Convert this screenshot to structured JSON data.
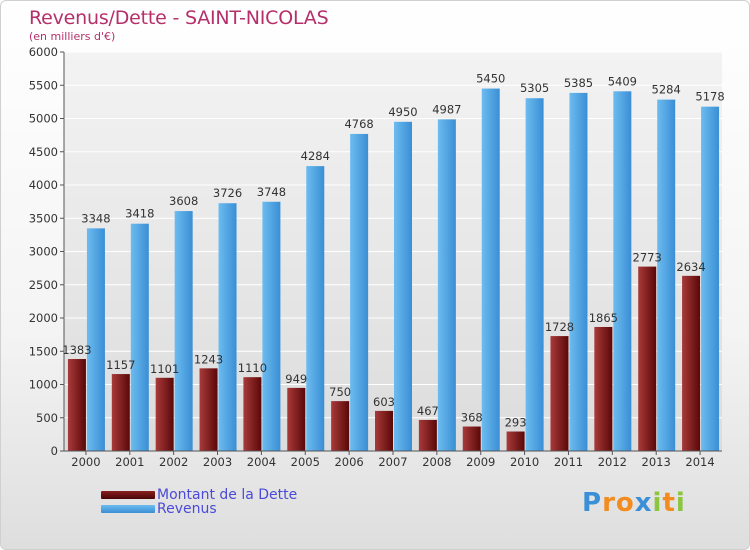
{
  "header": {
    "title": "Revenus/Dette - SAINT-NICOLAS",
    "subtitle": "(en milliers d'€)"
  },
  "chart_data": {
    "type": "bar",
    "categories": [
      "2000",
      "2001",
      "2002",
      "2003",
      "2004",
      "2005",
      "2006",
      "2007",
      "2008",
      "2009",
      "2010",
      "2011",
      "2012",
      "2013",
      "2014"
    ],
    "series": [
      {
        "name": "Montant de la Dette",
        "color": "#7a1515",
        "values": [
          1383,
          1157,
          1101,
          1243,
          1110,
          949,
          750,
          603,
          467,
          368,
          293,
          1728,
          1865,
          2773,
          2634
        ],
        "labels": [
          "1383",
          "1157",
          "1101",
          "1243",
          "1110",
          "949",
          "750",
          "603",
          "467",
          "368",
          "293",
          "1728",
          "1865",
          "2773",
          "2634"
        ]
      },
      {
        "name": "Revenus",
        "color": "#4ea6e4",
        "values": [
          3348,
          3418,
          3608,
          3726,
          3748,
          4284,
          4768,
          4950,
          4987,
          5450,
          5305,
          5385,
          5409,
          5284,
          5178
        ],
        "labels": [
          "3348",
          "3418",
          "3608",
          "3726",
          "3748",
          "4284",
          "4768",
          "4950",
          "4987",
          "5450",
          "5305",
          "5385",
          "5409",
          "5284",
          "5178"
        ]
      }
    ],
    "y_ticks": [
      "0",
      "500",
      "1000",
      "1500",
      "2000",
      "2500",
      "3000",
      "3500",
      "4000",
      "4500",
      "5000",
      "5500",
      "6000"
    ],
    "ylim": [
      0,
      6000
    ],
    "grid": true,
    "legend_position": "bottom-left"
  },
  "legend": [
    {
      "label": "Montant de la Dette",
      "color": "#7a1515"
    },
    {
      "label": "Revenus",
      "color": "#4ea6e4"
    }
  ],
  "logo": {
    "text": "Proxiti",
    "letters": [
      "P",
      "r",
      "o",
      "x",
      "i",
      "t",
      "i"
    ],
    "colors": [
      "#3a8fd6",
      "#f28c1e",
      "#f28c1e",
      "#3a8fd6",
      "#8cc63f",
      "#f28c1e",
      "#8cc63f"
    ]
  }
}
